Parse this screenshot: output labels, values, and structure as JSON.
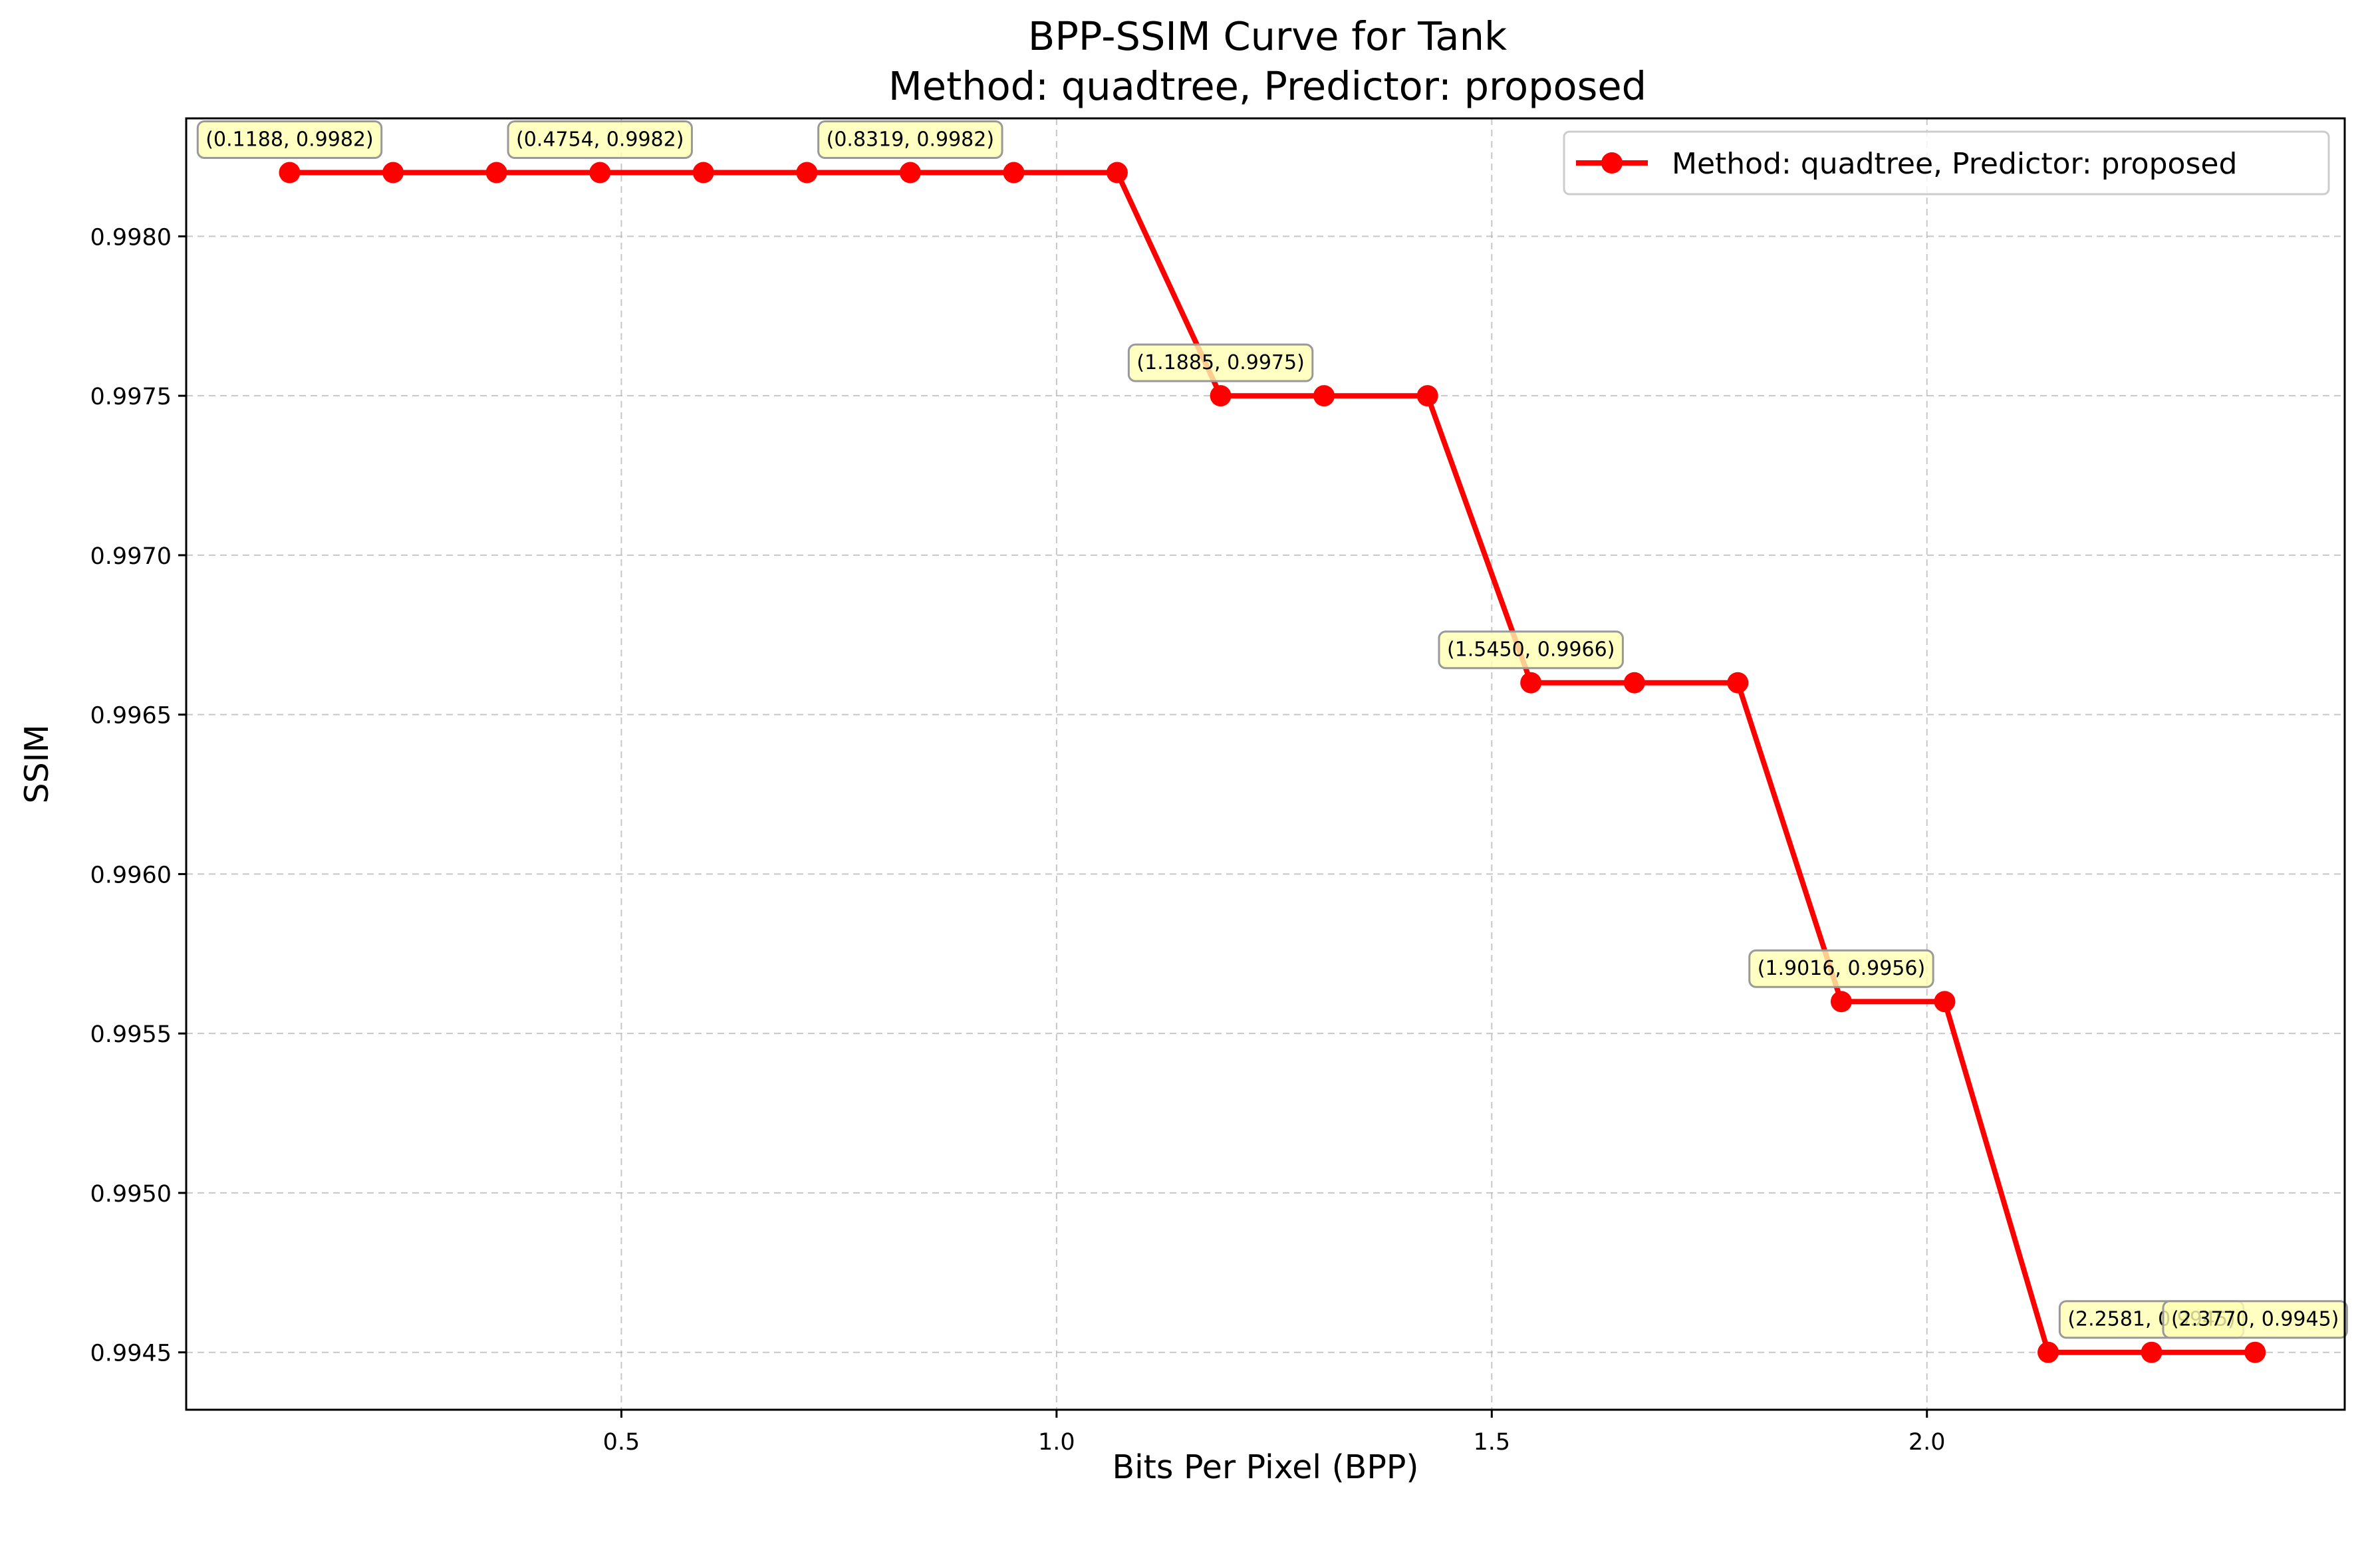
{
  "chart_data": {
    "type": "line",
    "title": "BPP-SSIM Curve for Tank",
    "subtitle": "Method: quadtree, Predictor: proposed",
    "xlabel": "Bits Per Pixel (BPP)",
    "ylabel": "SSIM",
    "xlim": [
      0.0,
      2.48
    ],
    "ylim": [
      0.99432,
      0.99837
    ],
    "xticks": [
      0.5,
      1.0,
      1.5,
      2.0
    ],
    "xtick_labels": [
      "0.5",
      "1.0",
      "1.5",
      "2.0"
    ],
    "yticks": [
      0.9945,
      0.995,
      0.9955,
      0.996,
      0.9965,
      0.997,
      0.9975,
      0.998
    ],
    "ytick_labels": [
      "0.9945",
      "0.9950",
      "0.9955",
      "0.9960",
      "0.9965",
      "0.9970",
      "0.9975",
      "0.9980"
    ],
    "grid": true,
    "legend_position": "top-right",
    "series": [
      {
        "name": "Method: quadtree, Predictor: proposed",
        "color": "#ff0000",
        "x": [
          0.1188,
          0.2377,
          0.3565,
          0.4754,
          0.5942,
          0.7131,
          0.8319,
          0.9508,
          1.0696,
          1.1885,
          1.3073,
          1.4262,
          1.545,
          1.6639,
          1.7827,
          1.9016,
          2.0204,
          2.1393,
          2.2581,
          2.377
        ],
        "y": [
          0.9982,
          0.9982,
          0.9982,
          0.9982,
          0.9982,
          0.9982,
          0.9982,
          0.9982,
          0.9982,
          0.9975,
          0.9975,
          0.9975,
          0.9966,
          0.9966,
          0.9966,
          0.9956,
          0.9956,
          0.9945,
          0.9945,
          0.9945
        ]
      }
    ],
    "annotations": [
      {
        "text": "(0.1188, 0.9982)",
        "x": 0.1188,
        "y": 0.9982
      },
      {
        "text": "(0.4754, 0.9982)",
        "x": 0.4754,
        "y": 0.9982
      },
      {
        "text": "(0.8319, 0.9982)",
        "x": 0.8319,
        "y": 0.9982
      },
      {
        "text": "(1.1885, 0.9975)",
        "x": 1.1885,
        "y": 0.9975
      },
      {
        "text": "(1.5450, 0.9966)",
        "x": 1.545,
        "y": 0.9966
      },
      {
        "text": "(1.9016, 0.9956)",
        "x": 1.9016,
        "y": 0.9956
      },
      {
        "text": "(2.2581, 0.9945)",
        "x": 2.2581,
        "y": 0.9945
      },
      {
        "text": "(2.3770, 0.9945)",
        "x": 2.377,
        "y": 0.9945
      }
    ],
    "annotation_box_color": "#ffffb3"
  }
}
